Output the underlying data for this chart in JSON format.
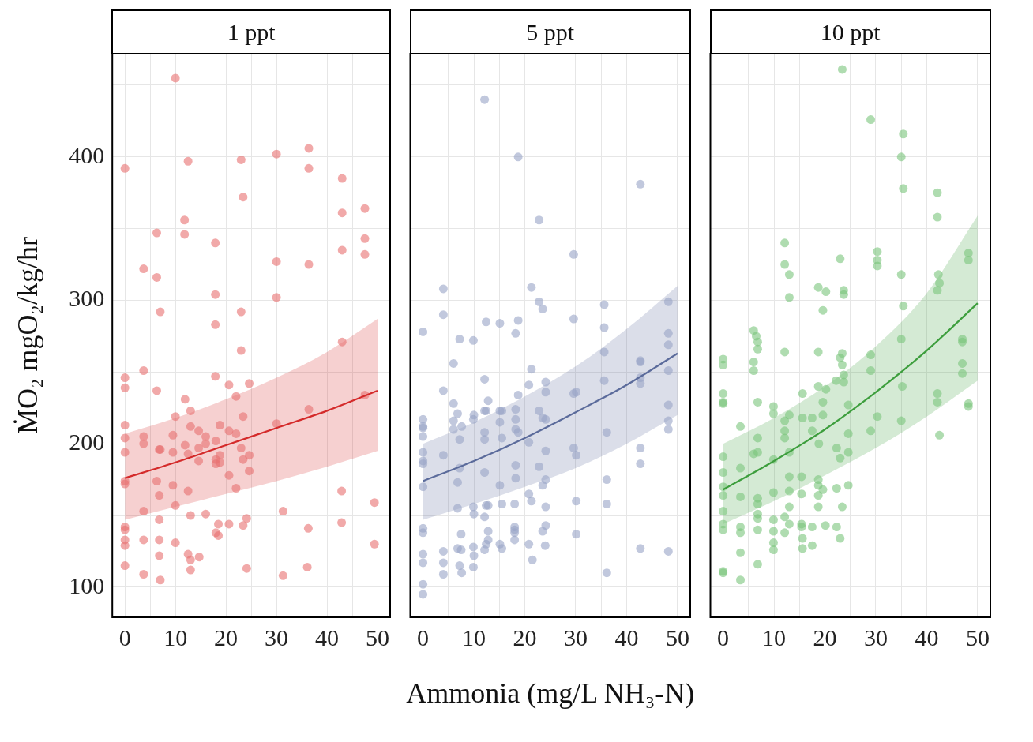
{
  "chart_data": [
    {
      "type": "scatter",
      "title": "1 ppt",
      "ylabel": "ṀO₂ mgO₂/kg/hr",
      "xlim": [
        -2.5,
        52.5
      ],
      "xticks": [
        0,
        {
          "value": 5,
          "label": null
        },
        10,
        {
          "value": 15,
          "label": null
        },
        20,
        {
          "value": 25,
          "label": null
        },
        30,
        {
          "value": 35,
          "label": null
        },
        40,
        {
          "value": 45,
          "label": null
        },
        50
      ],
      "ylim": [
        79,
        472
      ],
      "yticks": [
        100,
        {
          "value": 150,
          "label": null
        },
        200,
        {
          "value": 250,
          "label": null
        },
        300,
        {
          "value": 350,
          "label": null
        },
        400,
        {
          "value": 450,
          "label": null
        }
      ],
      "grid": true,
      "series": [
        {
          "type": "scatter",
          "marker": "circle",
          "color": "#e87070",
          "x": [
            10,
            0,
            12.5,
            23,
            30,
            36.4,
            36.4,
            43,
            23.4,
            43,
            47.5,
            11.8,
            11.8,
            6.3,
            17.9,
            47.5,
            47.5,
            43,
            30,
            36.4,
            3.7,
            6.3,
            17.9,
            30,
            7,
            23,
            17.9,
            23,
            43,
            3.7,
            0,
            0,
            6.3,
            17.9,
            20.6,
            24.6,
            47.5,
            11.9,
            22,
            10,
            13,
            23.4,
            36.4,
            30,
            0,
            0,
            3.7,
            3.7,
            9.5,
            13,
            14.6,
            16,
            18.8,
            20.6,
            22,
            18,
            16,
            14.6,
            11.9,
            6.8,
            7,
            9.5,
            0,
            12.5,
            14.6,
            18,
            18.8,
            18,
            18.8,
            23,
            23.4,
            24.6,
            24.6,
            20.6,
            0,
            0,
            6.3,
            6.8,
            9.5,
            12.5,
            22,
            10,
            3.7,
            13,
            16,
            6.8,
            0,
            0,
            0,
            0,
            3.7,
            6.8,
            10,
            18.5,
            18,
            18.5,
            20.6,
            23.4,
            24.1,
            31.3,
            36.3,
            42.9,
            42.9,
            49.4,
            49.4,
            0,
            3.7,
            6.8,
            7,
            12.5,
            13,
            13,
            14.7,
            24.1,
            31.3,
            36.1
          ],
          "values": [
            455,
            392,
            397,
            398,
            402,
            406,
            392,
            385,
            372,
            361,
            364,
            356,
            346,
            347,
            340,
            343,
            332,
            335,
            327,
            325,
            322,
            316,
            304,
            302,
            292,
            292,
            283,
            265,
            271,
            251,
            246,
            239,
            237,
            247,
            241,
            242,
            234,
            231,
            233,
            219,
            223,
            219,
            224,
            214,
            213,
            204,
            205,
            200,
            206,
            212,
            209,
            205,
            213,
            209,
            207,
            202,
            200,
            197,
            199,
            196,
            196,
            194,
            194,
            193,
            188,
            189,
            192,
            186,
            187,
            197,
            189,
            192,
            181,
            178,
            174,
            172,
            174,
            164,
            171,
            167,
            169,
            157,
            153,
            150,
            151,
            147,
            142,
            140,
            133,
            129,
            133,
            133,
            131,
            144,
            138,
            136,
            144,
            143,
            148,
            153,
            141,
            167,
            145,
            159,
            130,
            115,
            109,
            122,
            105,
            123,
            112,
            119,
            121,
            113,
            108,
            114
          ]
        },
        {
          "type": "line",
          "marker": "none",
          "color": "#d42a2a",
          "x": [
            0,
            10,
            20,
            30,
            40,
            50
          ],
          "values": [
            176,
            187,
            199,
            211,
            223,
            237
          ],
          "lower": [
            147,
            156,
            165,
            174,
            184,
            195
          ],
          "upper": [
            207,
            218,
            231,
            246,
            264,
            287
          ]
        }
      ]
    },
    {
      "type": "scatter",
      "title": "5 ppt",
      "xlabel": "Ammonia (mg/L NH₃-N)",
      "tick_labels": "x",
      "xlim": [
        -2.5,
        52.5
      ],
      "xticks": [
        0,
        {
          "value": 5,
          "label": null
        },
        10,
        {
          "value": 15,
          "label": null
        },
        20,
        {
          "value": 25,
          "label": null
        },
        30,
        {
          "value": 35,
          "label": null
        },
        40,
        {
          "value": 45,
          "label": null
        },
        50
      ],
      "ylim": [
        79,
        472
      ],
      "yticks": [
        100,
        {
          "value": 150,
          "label": null
        },
        200,
        {
          "value": 250,
          "label": null
        },
        300,
        {
          "value": 350,
          "label": null
        },
        400,
        {
          "value": 450,
          "label": null
        }
      ],
      "grid": true,
      "series": [
        {
          "type": "scatter",
          "marker": "circle",
          "color": "#98a3c6",
          "x": [
            12.1,
            18.7,
            42.7,
            22.8,
            29.6,
            4,
            21.3,
            22.8,
            23.5,
            35.6,
            4,
            0,
            12.4,
            15.1,
            18.7,
            18.2,
            29.6,
            7.2,
            9.9,
            35.6,
            48.2,
            48.2,
            48.2,
            6,
            35.6,
            42.7,
            42.7,
            21.3,
            48.2,
            12.1,
            35.6,
            42.7,
            42.7,
            4,
            20.8,
            24.1,
            24.1,
            18.7,
            29.6,
            30.1,
            6,
            12.8,
            6.8,
            10,
            12.1,
            12.4,
            15.1,
            15.5,
            18.2,
            22.8,
            23.5,
            24.1,
            18.2,
            48.2,
            0,
            0,
            0,
            0,
            6,
            6,
            7.6,
            9.9,
            15.1,
            12.1,
            12.1,
            15.5,
            18.2,
            18.7,
            20.8,
            7.2,
            48.2,
            48.2,
            36.1,
            0,
            0,
            0,
            4,
            0,
            24.1,
            29.6,
            30.1,
            42.7,
            42.7,
            7.2,
            6.8,
            12.1,
            18.2,
            18.2,
            22.8,
            24.1,
            23.5,
            15.1,
            36.1,
            20.8,
            21.3,
            6.8,
            9.9,
            10,
            12.4,
            12.8,
            15.5,
            18,
            24.1,
            30.1,
            36.1,
            12.1,
            0,
            0,
            12.8,
            18,
            18,
            18,
            7.5,
            24.1,
            23.5,
            30.1,
            12.8,
            12.4,
            12.1,
            6.8,
            7.5,
            9.9,
            15.1,
            15.5,
            18,
            20.8,
            24,
            4,
            4,
            4,
            0,
            0,
            7.2,
            7.6,
            9.9,
            10,
            21.5,
            36.1,
            42.7,
            48.2,
            0,
            0
          ],
          "values": [
            440,
            400,
            381,
            356,
            332,
            308,
            309,
            299,
            294,
            297,
            290,
            278,
            285,
            284,
            286,
            277,
            287,
            273,
            272,
            281,
            299,
            277,
            269,
            256,
            264,
            258,
            257,
            252,
            251,
            245,
            244,
            246,
            242,
            237,
            241,
            243,
            236,
            234,
            235,
            236,
            228,
            230,
            221,
            220,
            223,
            223,
            223,
            223,
            224,
            223,
            218,
            217,
            217,
            227,
            217,
            212,
            211,
            205,
            216,
            210,
            212,
            217,
            215,
            208,
            203,
            204,
            210,
            208,
            201,
            203,
            216,
            210,
            208,
            194,
            188,
            186,
            192,
            170,
            195,
            197,
            192,
            197,
            186,
            183,
            173,
            180,
            185,
            176,
            184,
            175,
            171,
            171,
            175,
            165,
            160,
            155,
            156,
            151,
            157,
            157,
            158,
            158,
            156,
            160,
            158,
            149,
            141,
            138,
            139,
            142,
            140,
            138,
            137,
            143,
            139,
            137,
            133,
            130,
            126,
            127,
            126,
            128,
            130,
            127,
            133,
            130,
            129,
            125,
            117,
            109,
            123,
            117,
            115,
            110,
            114,
            122,
            119,
            110,
            127,
            125,
            102,
            95
          ]
        },
        {
          "type": "line",
          "marker": "none",
          "color": "#5b6b9b",
          "x": [
            0,
            10,
            20,
            30,
            40,
            50
          ],
          "values": [
            174,
            188,
            204,
            222,
            241,
            263
          ],
          "lower": [
            147,
            158,
            170,
            183,
            200,
            220
          ],
          "upper": [
            200,
            215,
            233,
            254,
            280,
            310
          ]
        }
      ]
    },
    {
      "type": "scatter",
      "title": "10 ppt",
      "tick_labels": "x",
      "xlim": [
        -2.5,
        52.5
      ],
      "xticks": [
        0,
        {
          "value": 5,
          "label": null
        },
        10,
        {
          "value": 15,
          "label": null
        },
        20,
        {
          "value": 25,
          "label": null
        },
        30,
        {
          "value": 35,
          "label": null
        },
        40,
        {
          "value": 45,
          "label": null
        },
        50
      ],
      "ylim": [
        79,
        472
      ],
      "yticks": [
        100,
        {
          "value": 150,
          "label": null
        },
        200,
        {
          "value": 250,
          "label": null
        },
        300,
        {
          "value": 350,
          "label": null
        },
        400,
        {
          "value": 450,
          "label": null
        }
      ],
      "grid": true,
      "series": [
        {
          "type": "scatter",
          "marker": "circle",
          "color": "#79c47b",
          "x": [
            23.4,
            29,
            35.4,
            35,
            35.4,
            42.1,
            42.1,
            12.1,
            12.1,
            13,
            13,
            23,
            30.3,
            30.3,
            30.3,
            35,
            48.2,
            48.2,
            42.3,
            42.5,
            42.1,
            18.7,
            20.2,
            23.7,
            23.7,
            19.6,
            35.4,
            35,
            6,
            6.5,
            6.8,
            6.8,
            12.1,
            18.7,
            23.4,
            23,
            23.4,
            23.7,
            23.7,
            22.2,
            0,
            0,
            6,
            6,
            29,
            29,
            47,
            47,
            47,
            47,
            35.2,
            42.1,
            42.1,
            48.2,
            48.2,
            18.7,
            20.2,
            15.6,
            0,
            0,
            0,
            6.8,
            9.9,
            9.9,
            19.6,
            24.6,
            13,
            12.1,
            12.1,
            12.1,
            15.6,
            17.5,
            19.6,
            17.5,
            30.3,
            35,
            29,
            24.6,
            42.5,
            3.4,
            6.8,
            18.8,
            22.3,
            23,
            24.6,
            6,
            6.8,
            13,
            9.9,
            0,
            0,
            3.4,
            0,
            0,
            3.4,
            9.9,
            13,
            13,
            15.4,
            15.4,
            18.7,
            18.7,
            19.6,
            18.7,
            22.3,
            24.6,
            6.8,
            6.8,
            13,
            18.7,
            23.4,
            0,
            6.8,
            6.8,
            12.1,
            9.9,
            0,
            0,
            3.4,
            3.4,
            6.8,
            13,
            12.1,
            15.4,
            15.4,
            17.5,
            20.1,
            22.3,
            9.9,
            9.9,
            9.9,
            15.6,
            15.6,
            17.5,
            23,
            3.4,
            6.8,
            0,
            0,
            3.4
          ],
          "values": [
            461,
            426,
            416,
            400,
            378,
            375,
            358,
            340,
            325,
            318,
            302,
            329,
            334,
            328,
            324,
            318,
            333,
            328,
            318,
            312,
            307,
            309,
            306,
            307,
            304,
            293,
            296,
            273,
            279,
            275,
            271,
            266,
            264,
            264,
            263,
            260,
            255,
            248,
            243,
            244,
            259,
            255,
            257,
            251,
            262,
            251,
            273,
            271,
            256,
            249,
            240,
            235,
            229,
            228,
            226,
            240,
            238,
            235,
            235,
            229,
            228,
            229,
            226,
            221,
            229,
            227,
            220,
            216,
            209,
            204,
            218,
            218,
            220,
            209,
            219,
            216,
            209,
            207,
            206,
            212,
            204,
            200,
            197,
            190,
            194,
            193,
            194,
            194,
            189,
            191,
            180,
            183,
            170,
            164,
            163,
            166,
            177,
            167,
            177,
            165,
            175,
            171,
            168,
            164,
            169,
            171,
            162,
            158,
            156,
            156,
            156,
            153,
            151,
            148,
            149,
            147,
            144,
            140,
            142,
            138,
            140,
            144,
            138,
            144,
            142,
            142,
            143,
            142,
            139,
            131,
            126,
            134,
            127,
            129,
            134,
            124,
            116,
            111,
            110,
            105
          ]
        },
        {
          "type": "line",
          "marker": "none",
          "color": "#3d9e3d",
          "x": [
            0,
            10,
            20,
            30,
            40,
            50
          ],
          "values": [
            168,
            188,
            210,
            236,
            265,
            298
          ],
          "lower": [
            144,
            160,
            178,
            197,
            219,
            244
          ],
          "upper": [
            200,
            218,
            240,
            268,
            305,
            359
          ]
        }
      ]
    }
  ]
}
